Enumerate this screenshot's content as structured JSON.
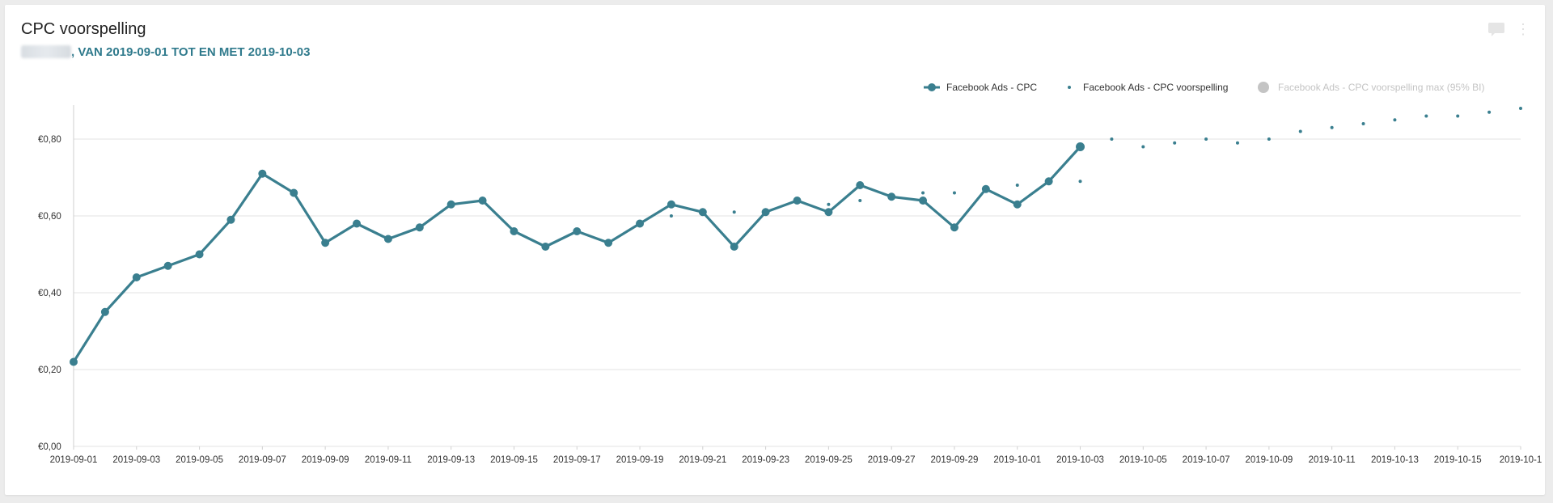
{
  "header": {
    "title": "CPC voorspelling",
    "subtitle": ", VAN 2019-09-01 TOT EN MET 2019-10-03"
  },
  "icons": [
    "comment-icon",
    "more-vertical-icon"
  ],
  "colors": {
    "series": "#3a7f8f",
    "muted": "#c4c4c4",
    "grid": "#e3e3e3",
    "subtitle": "#2f7a8c"
  },
  "chart_data": {
    "type": "line",
    "title": "CPC voorspelling",
    "xlabel": "",
    "ylabel": "",
    "ylim": [
      0,
      0.88
    ],
    "y_ticks": [
      "€0,00",
      "€0,20",
      "€0,40",
      "€0,60",
      "€0,80"
    ],
    "x_tick_labels": [
      "2019-09-01",
      "2019-09-03",
      "2019-09-05",
      "2019-09-07",
      "2019-09-09",
      "2019-09-11",
      "2019-09-13",
      "2019-09-15",
      "2019-09-17",
      "2019-09-19",
      "2019-09-21",
      "2019-09-23",
      "2019-09-25",
      "2019-09-27",
      "2019-09-29",
      "2019-10-01",
      "2019-10-03",
      "2019-10-05",
      "2019-10-07",
      "2019-10-09",
      "2019-10-11",
      "2019-10-13",
      "2019-10-15",
      "2019-10-1"
    ],
    "grid": true,
    "legend_position": "top-right",
    "series": [
      {
        "name": "Facebook Ads - CPC",
        "style": "line-markers",
        "x": [
          "2019-09-01",
          "2019-09-02",
          "2019-09-03",
          "2019-09-04",
          "2019-09-05",
          "2019-09-06",
          "2019-09-07",
          "2019-09-08",
          "2019-09-09",
          "2019-09-10",
          "2019-09-11",
          "2019-09-12",
          "2019-09-13",
          "2019-09-14",
          "2019-09-15",
          "2019-09-16",
          "2019-09-17",
          "2019-09-18",
          "2019-09-19",
          "2019-09-20",
          "2019-09-21",
          "2019-09-22",
          "2019-09-23",
          "2019-09-24",
          "2019-09-25",
          "2019-09-26",
          "2019-09-27",
          "2019-09-28",
          "2019-09-29",
          "2019-09-30",
          "2019-10-01",
          "2019-10-02",
          "2019-10-03"
        ],
        "values": [
          0.22,
          0.35,
          0.44,
          0.47,
          0.5,
          0.59,
          0.71,
          0.66,
          0.53,
          0.58,
          0.54,
          0.57,
          0.63,
          0.64,
          0.56,
          0.52,
          0.56,
          0.53,
          0.58,
          0.63,
          0.61,
          0.52,
          0.61,
          0.64,
          0.61,
          0.68,
          0.65,
          0.64,
          0.57,
          0.67,
          0.63,
          0.69,
          0.78
        ]
      },
      {
        "name": "Facebook Ads - CPC voorspelling",
        "style": "dots",
        "x": [
          "2019-09-20",
          "2019-09-22",
          "2019-09-24",
          "2019-09-25",
          "2019-09-26",
          "2019-09-28",
          "2019-09-29",
          "2019-10-01",
          "2019-10-03",
          "2019-10-04",
          "2019-10-05",
          "2019-10-06",
          "2019-10-07",
          "2019-10-08",
          "2019-10-09",
          "2019-10-10",
          "2019-10-11",
          "2019-10-12",
          "2019-10-13",
          "2019-10-14",
          "2019-10-15",
          "2019-10-16",
          "2019-10-17"
        ],
        "values": [
          0.6,
          0.61,
          0.64,
          0.63,
          0.64,
          0.66,
          0.66,
          0.68,
          0.69,
          0.8,
          0.78,
          0.79,
          0.8,
          0.79,
          0.8,
          0.82,
          0.83,
          0.84,
          0.85,
          0.86,
          0.86,
          0.87,
          0.88
        ]
      },
      {
        "name": "Facebook Ads - CPC voorspelling max (95% BI)",
        "style": "hidden",
        "x": [],
        "values": []
      }
    ]
  }
}
